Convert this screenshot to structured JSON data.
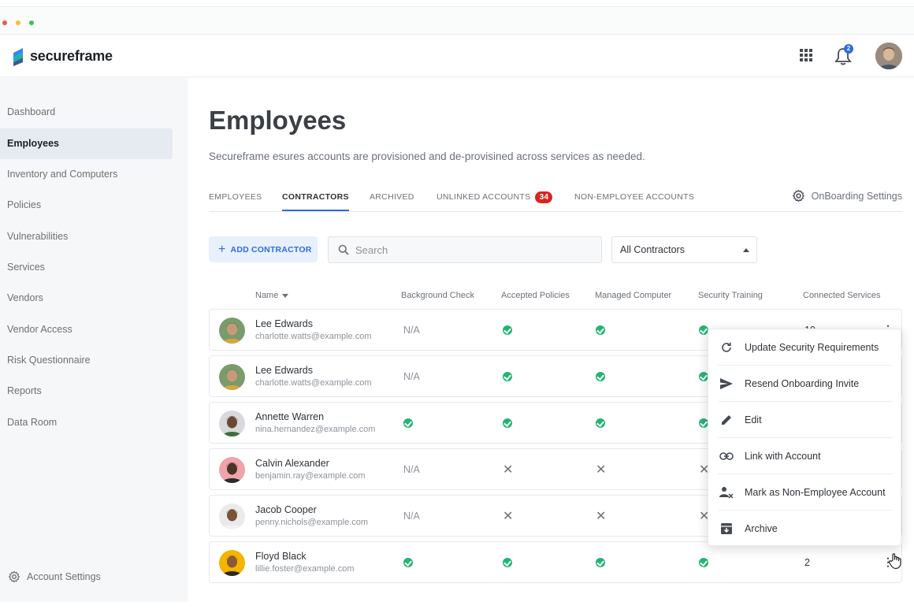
{
  "app": {
    "brand": "secureframe",
    "notification_count": "2"
  },
  "sidebar": {
    "items": [
      {
        "label": "Dashboard"
      },
      {
        "label": "Employees"
      },
      {
        "label": "Inventory and Computers"
      },
      {
        "label": "Policies"
      },
      {
        "label": "Vulnerabilities"
      },
      {
        "label": "Services"
      },
      {
        "label": "Vendors"
      },
      {
        "label": "Vendor Access"
      },
      {
        "label": "Risk Questionnaire"
      },
      {
        "label": "Reports"
      },
      {
        "label": "Data Room"
      }
    ],
    "active": "Employees",
    "account_settings": "Account Settings"
  },
  "page": {
    "title": "Employees",
    "description": "Secureframe esures accounts are provisioned and de-provisined across services as needed."
  },
  "tabs": [
    {
      "label": "EMPLOYEES"
    },
    {
      "label": "CONTRACTORS"
    },
    {
      "label": "ARCHIVED"
    },
    {
      "label": "UNLINKED ACCOUNTS",
      "badge": "34"
    },
    {
      "label": "NON-EMPLOYEE ACCOUNTS"
    }
  ],
  "active_tab": "CONTRACTORS",
  "onboarding_settings": "OnBoarding Settings",
  "toolbar": {
    "add_label": "ADD CONTRACTOR",
    "search_placeholder": "Search",
    "filter_value": "All Contractors"
  },
  "table": {
    "columns": [
      "Name",
      "Background Check",
      "Accepted Policies",
      "Managed Computer",
      "Security Training",
      "Connected Services"
    ],
    "rows": [
      {
        "name": "Lee Edwards",
        "email": "charlotte.watts@example.com",
        "background": "N/A",
        "policies": "check",
        "computer": "check",
        "training": "check",
        "services": "10"
      },
      {
        "name": "Lee Edwards",
        "email": "charlotte.watts@example.com",
        "background": "N/A",
        "policies": "check",
        "computer": "check",
        "training": "check",
        "services": ""
      },
      {
        "name": "Annette Warren",
        "email": "nina.hernandez@example.com",
        "background": "check",
        "policies": "check",
        "computer": "check",
        "training": "check",
        "services": ""
      },
      {
        "name": "Calvin Alexander",
        "email": "benjamin.ray@example.com",
        "background": "N/A",
        "policies": "x",
        "computer": "x",
        "training": "x",
        "services": ""
      },
      {
        "name": "Jacob Cooper",
        "email": "penny.nichols@example.com",
        "background": "N/A",
        "policies": "x",
        "computer": "x",
        "training": "x",
        "services": ""
      },
      {
        "name": "Floyd Black",
        "email": "lillie.foster@example.com",
        "background": "check",
        "policies": "check",
        "computer": "check",
        "training": "check",
        "services": "2"
      }
    ]
  },
  "context_menu": {
    "items": [
      {
        "label": "Update Security Requirements",
        "icon": "refresh-icon"
      },
      {
        "label": "Resend Onboarding Invite",
        "icon": "send-icon"
      },
      {
        "label": "Edit",
        "icon": "pencil-icon"
      },
      {
        "label": "Link with Account",
        "icon": "link-icon"
      },
      {
        "label": "Mark as Non-Employee Account",
        "icon": "person-remove-icon"
      },
      {
        "label": "Archive",
        "icon": "archive-icon"
      }
    ]
  },
  "colors": {
    "accent": "#2d6be4",
    "success": "#22b573",
    "badge": "#e02020"
  }
}
